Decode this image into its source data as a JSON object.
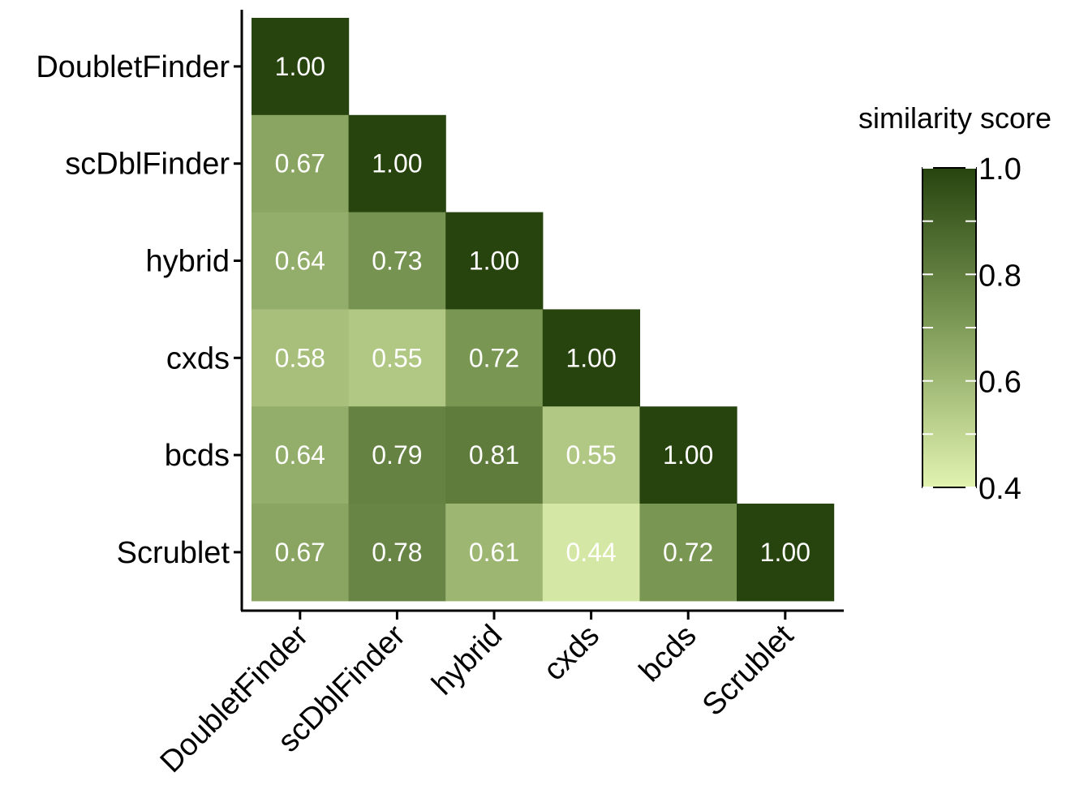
{
  "chart_data": {
    "type": "heatmap",
    "title": "",
    "xlabel": "",
    "ylabel": "",
    "x_categories": [
      "DoubletFinder",
      "scDblFinder",
      "hybrid",
      "cxds",
      "bcds",
      "Scrublet"
    ],
    "y_categories": [
      "DoubletFinder",
      "scDblFinder",
      "hybrid",
      "cxds",
      "bcds",
      "Scrublet"
    ],
    "matrix": [
      [
        1.0,
        null,
        null,
        null,
        null,
        null
      ],
      [
        0.67,
        1.0,
        null,
        null,
        null,
        null
      ],
      [
        0.64,
        0.73,
        1.0,
        null,
        null,
        null
      ],
      [
        0.58,
        0.55,
        0.72,
        1.0,
        null,
        null
      ],
      [
        0.64,
        0.79,
        0.81,
        0.55,
        1.0,
        null
      ],
      [
        0.67,
        0.78,
        0.61,
        0.44,
        0.72,
        1.0
      ]
    ],
    "value_format_decimals": 2,
    "legend": {
      "title": "similarity score",
      "position": "right",
      "range": [
        0.4,
        1.0
      ],
      "tick_labels": [
        "1.0",
        "0.8",
        "0.6",
        "0.4"
      ],
      "tick_values": [
        1.0,
        0.8,
        0.6,
        0.4
      ],
      "minor_ticks": [
        0.5,
        0.7,
        0.9
      ]
    },
    "colors": {
      "low": "#e2f3b0",
      "mid": "#7f9c58",
      "high": "#27440f"
    },
    "grid": false
  }
}
